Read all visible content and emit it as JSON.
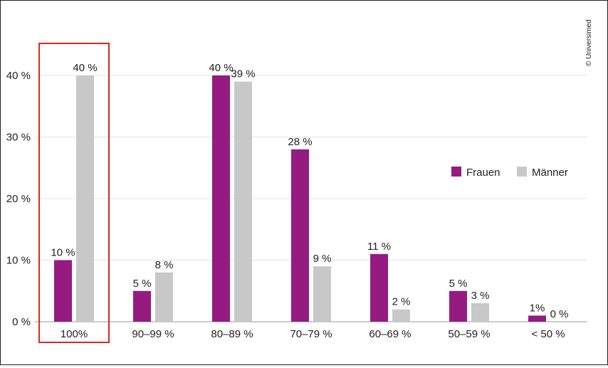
{
  "chart_data": {
    "type": "bar",
    "categories": [
      "100%",
      "90–99 %",
      "80–89 %",
      "70–79 %",
      "60–69 %",
      "50–59 %",
      "< 50 %"
    ],
    "series": [
      {
        "name": "Frauen",
        "values": [
          10,
          5,
          40,
          28,
          11,
          5,
          1
        ],
        "labels": [
          "10 %",
          "5 %",
          "40 %",
          "28 %",
          "11 %",
          "5 %",
          "1%"
        ],
        "color": "#951b81"
      },
      {
        "name": "Männer",
        "values": [
          40,
          8,
          39,
          9,
          2,
          3,
          0
        ],
        "labels": [
          "40 %",
          "8 %",
          "39 %",
          "9 %",
          "2 %",
          "3 %",
          "0 %"
        ],
        "color": "#c8c8c8"
      }
    ],
    "y_ticks": [
      "0 %",
      "10 %",
      "20 %",
      "30 %",
      "40 %"
    ],
    "y_tick_values": [
      0,
      10,
      20,
      30,
      40
    ],
    "ylim": [
      0,
      40
    ],
    "grid": true,
    "legend_position": "right",
    "highlight_category": "100%",
    "highlight_color": "#d42a20",
    "title": "",
    "xlabel": "",
    "ylabel": ""
  },
  "copyright": "© Universimed"
}
